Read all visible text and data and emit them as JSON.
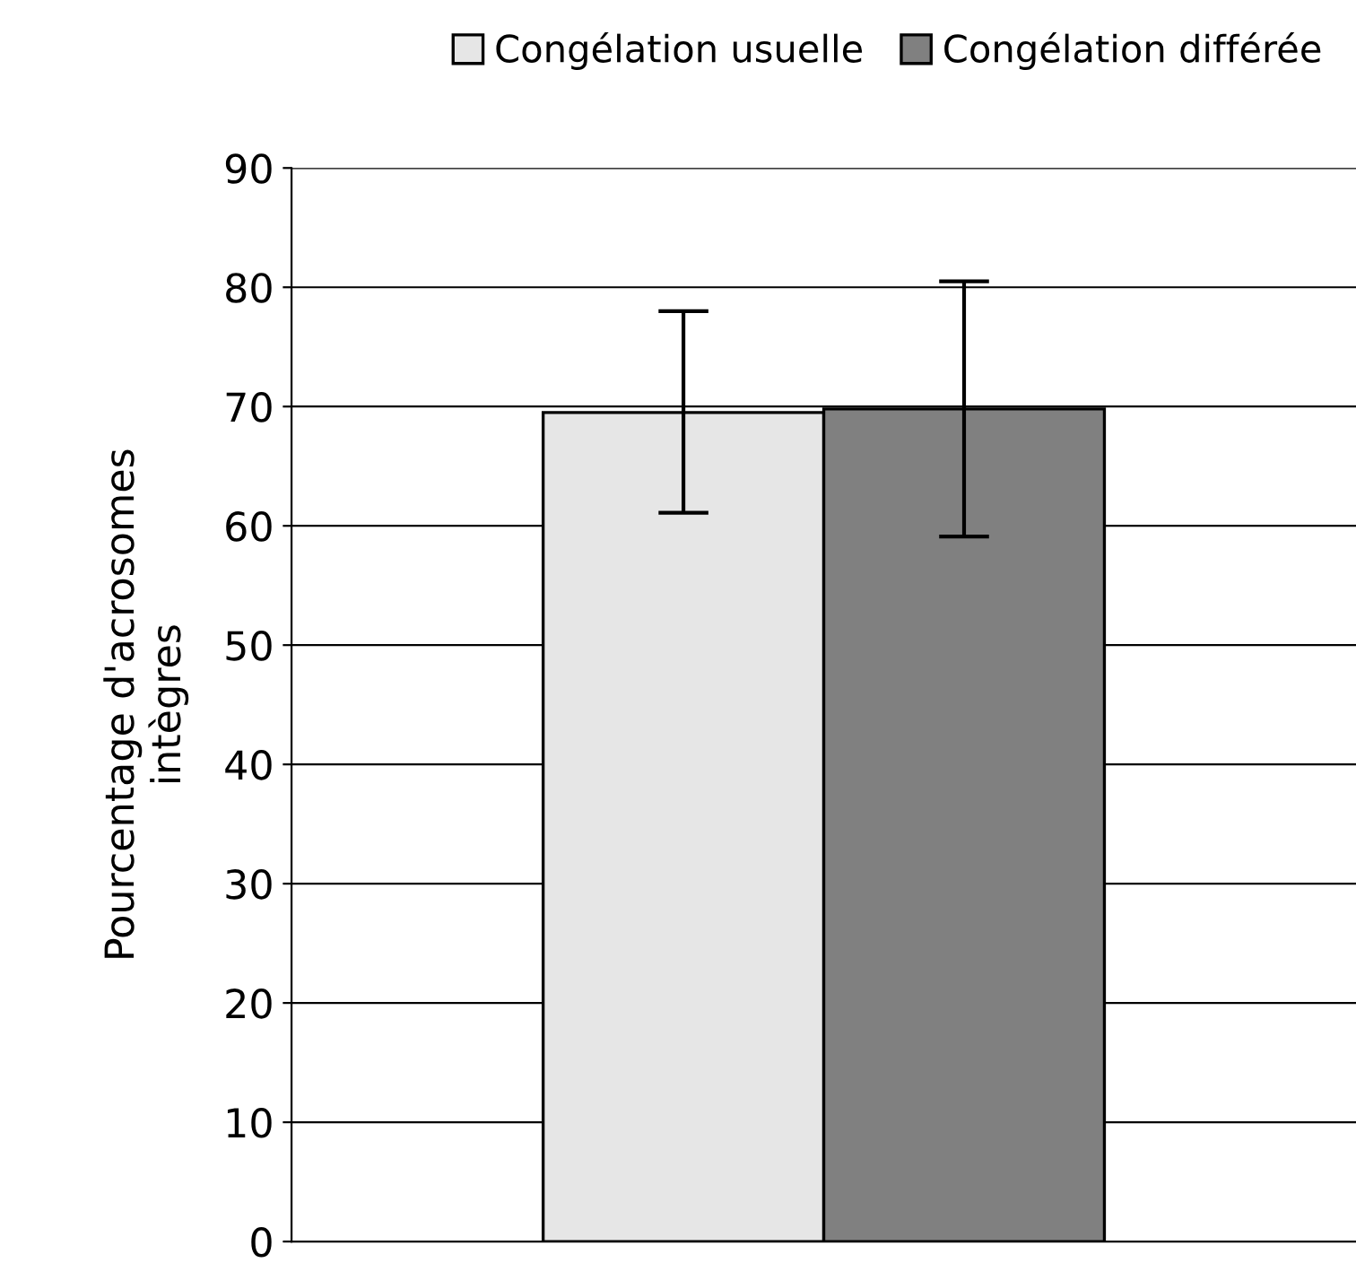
{
  "chart_data": {
    "type": "bar",
    "ylabel": "Pourcentage d'acrosomes\nintègres",
    "categories": [
      null
    ],
    "series": [
      {
        "name": "Congélation usuelle",
        "color": "#e6e6e6",
        "values": [
          69.5
        ],
        "errors": [
          [
            61.1,
            78.0
          ]
        ]
      },
      {
        "name": "Congélation différée",
        "color": "#808080",
        "values": [
          69.8
        ],
        "errors": [
          [
            59.1,
            80.5
          ]
        ]
      }
    ],
    "ylim": [
      0,
      90
    ],
    "yticks": [
      0,
      10,
      20,
      30,
      40,
      50,
      60,
      70,
      80,
      90
    ],
    "grid": "y",
    "legend": "top right",
    "tick_labels": "y"
  }
}
